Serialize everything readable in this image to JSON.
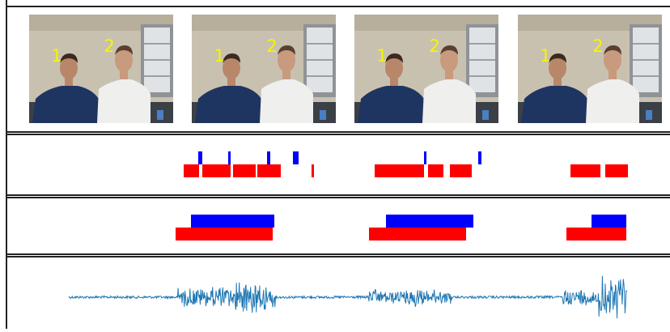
{
  "frames": [
    {
      "labels": [
        "1",
        "2"
      ]
    },
    {
      "labels": [
        "1",
        "2"
      ]
    },
    {
      "labels": [
        "1",
        "2"
      ]
    },
    {
      "labels": [
        "1",
        "2"
      ]
    }
  ]
}
